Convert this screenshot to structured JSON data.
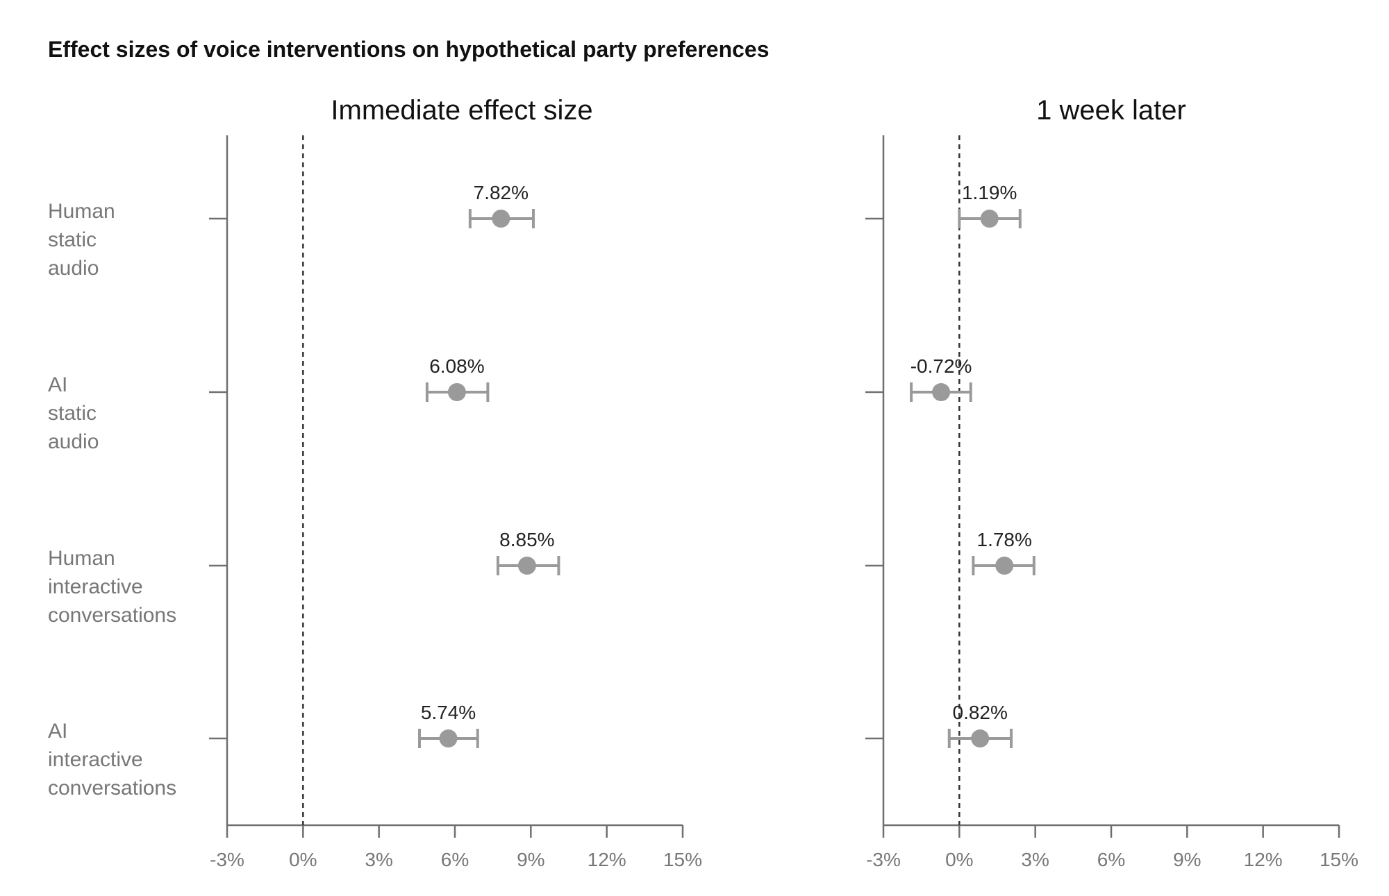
{
  "title": "Effect sizes of voice interventions on hypothetical party preferences",
  "colors": {
    "point": "#9a9a9a",
    "axis": "#6f6f6f",
    "zero_line": "#333333",
    "category_text": "#777777",
    "tick_text": "#777777"
  },
  "chart_data": [
    {
      "type": "scatter",
      "title": "Immediate effect size",
      "categories": [
        [
          "Human",
          "static",
          "audio"
        ],
        [
          "AI",
          "static",
          "audio"
        ],
        [
          "Human",
          "interactive",
          "conversations"
        ],
        [
          "AI",
          "interactive",
          "conversations"
        ]
      ],
      "values": [
        7.82,
        6.08,
        8.85,
        5.74
      ],
      "value_labels": [
        "7.82%",
        "6.08%",
        "8.85%",
        "5.74%"
      ],
      "error_low": [
        6.6,
        4.9,
        7.7,
        4.6
      ],
      "error_high": [
        9.1,
        7.3,
        10.1,
        6.9
      ],
      "xlim": [
        -3,
        15
      ],
      "xticks": [
        -3,
        0,
        3,
        6,
        9,
        12,
        15
      ],
      "xtick_labels": [
        "-3%",
        "0%",
        "3%",
        "6%",
        "9%",
        "12%",
        "15%"
      ],
      "reference_line": 0,
      "grid": false
    },
    {
      "type": "scatter",
      "title": "1 week later",
      "categories": [
        [
          "Human",
          "static",
          "audio"
        ],
        [
          "AI",
          "static",
          "audio"
        ],
        [
          "Human",
          "interactive",
          "conversations"
        ],
        [
          "AI",
          "interactive",
          "conversations"
        ]
      ],
      "values": [
        1.19,
        -0.72,
        1.78,
        0.82
      ],
      "value_labels": [
        "1.19%",
        "-0.72%",
        "1.78%",
        "0.82%"
      ],
      "error_low": [
        0.0,
        -1.9,
        0.55,
        -0.4
      ],
      "error_high": [
        2.4,
        0.45,
        2.95,
        2.05
      ],
      "xlim": [
        -3,
        15
      ],
      "xticks": [
        -3,
        0,
        3,
        6,
        9,
        12,
        15
      ],
      "xtick_labels": [
        "-3%",
        "0%",
        "3%",
        "6%",
        "9%",
        "12%",
        "15%"
      ],
      "reference_line": 0,
      "grid": false
    }
  ]
}
